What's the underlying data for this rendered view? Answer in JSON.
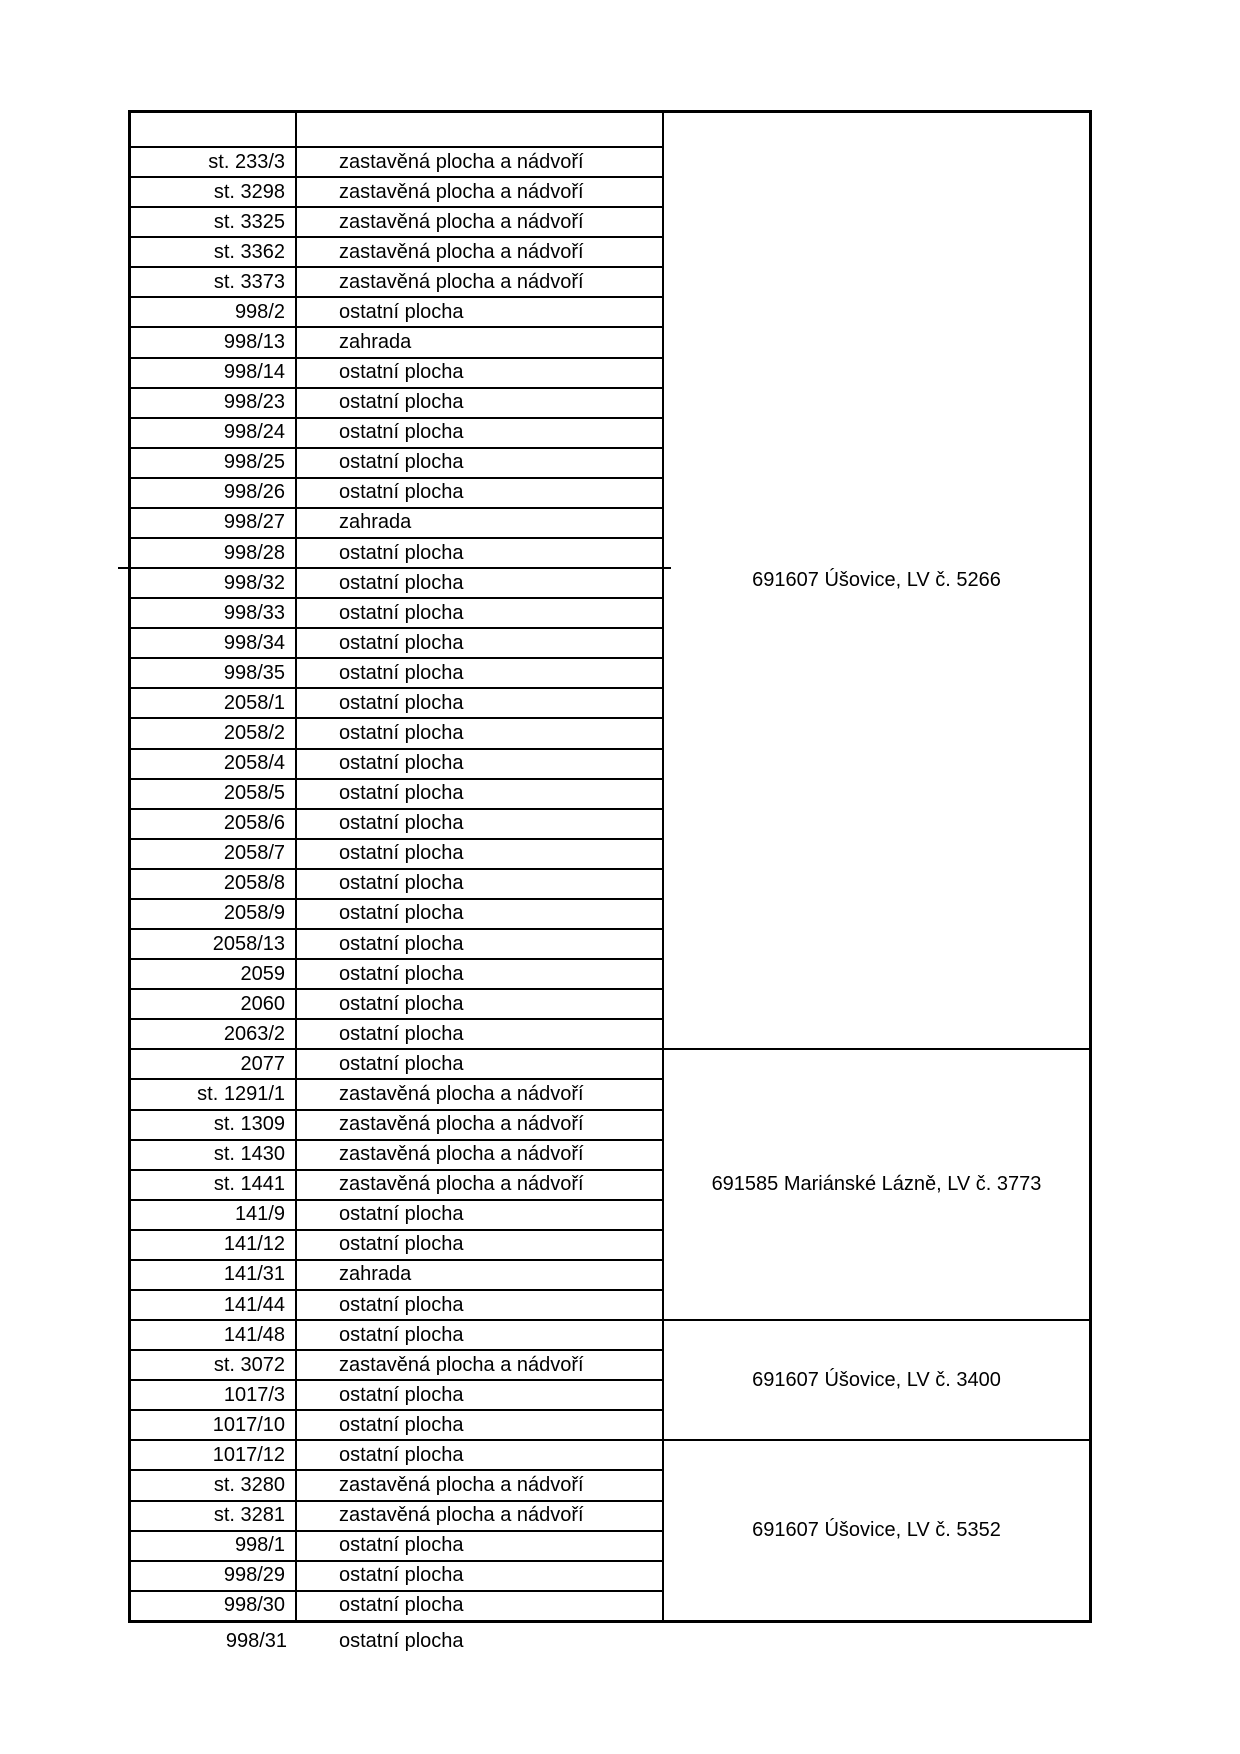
{
  "page": {
    "background": "#ffffff",
    "text_color": "#000000",
    "border_color": "#000000"
  },
  "table": {
    "columns": [
      "parcel_number",
      "land_type",
      "cadastral_territory_lv"
    ],
    "header_row_empty": true,
    "land_type_values": [
      "zastavěná plocha a nádvoří",
      "ostatní plocha",
      "zahrada"
    ],
    "rows": [
      {
        "parcel": "st. 233/3",
        "type": "zastavěná plocha a nádvoří"
      },
      {
        "parcel": "st. 3298",
        "type": "zastavěná plocha a nádvoří"
      },
      {
        "parcel": "st. 3325",
        "type": "zastavěná plocha a nádvoří"
      },
      {
        "parcel": "st. 3362",
        "type": "zastavěná plocha a nádvoří"
      },
      {
        "parcel": "st. 3373",
        "type": "zastavěná plocha a nádvoří"
      },
      {
        "parcel": "998/2",
        "type": "ostatní plocha"
      },
      {
        "parcel": "998/13",
        "type": "zahrada"
      },
      {
        "parcel": "998/14",
        "type": "ostatní plocha"
      },
      {
        "parcel": "998/23",
        "type": "ostatní plocha"
      },
      {
        "parcel": "998/24",
        "type": "ostatní plocha"
      },
      {
        "parcel": "998/25",
        "type": "ostatní plocha"
      },
      {
        "parcel": "998/26",
        "type": "ostatní plocha"
      },
      {
        "parcel": "998/27",
        "type": "zahrada"
      },
      {
        "parcel": "998/28",
        "type": "ostatní plocha"
      },
      {
        "parcel": "998/32",
        "type": "ostatní plocha"
      },
      {
        "parcel": "998/33",
        "type": "ostatní plocha"
      },
      {
        "parcel": "998/34",
        "type": "ostatní plocha"
      },
      {
        "parcel": "998/35",
        "type": "ostatní plocha"
      },
      {
        "parcel": "2058/1",
        "type": "ostatní plocha"
      },
      {
        "parcel": "2058/2",
        "type": "ostatní plocha"
      },
      {
        "parcel": "2058/4",
        "type": "ostatní plocha"
      },
      {
        "parcel": "2058/5",
        "type": "ostatní plocha"
      },
      {
        "parcel": "2058/6",
        "type": "ostatní plocha"
      },
      {
        "parcel": "2058/7",
        "type": "ostatní plocha"
      },
      {
        "parcel": "2058/8",
        "type": "ostatní plocha"
      },
      {
        "parcel": "2058/9",
        "type": "ostatní plocha"
      },
      {
        "parcel": "2058/13",
        "type": "ostatní plocha"
      },
      {
        "parcel": "2059",
        "type": "ostatní plocha"
      },
      {
        "parcel": "2060",
        "type": "ostatní plocha"
      },
      {
        "parcel": "2063/2",
        "type": "ostatní plocha"
      },
      {
        "parcel": "2077",
        "type": "ostatní plocha"
      },
      {
        "parcel": "st. 1291/1",
        "type": "zastavěná plocha a nádvoří"
      },
      {
        "parcel": "st. 1309",
        "type": "zastavěná plocha a nádvoří"
      },
      {
        "parcel": "st. 1430",
        "type": "zastavěná plocha a nádvoří"
      },
      {
        "parcel": "st. 1441",
        "type": "zastavěná plocha a nádvoří"
      },
      {
        "parcel": "141/9",
        "type": "ostatní plocha"
      },
      {
        "parcel": "141/12",
        "type": "ostatní plocha"
      },
      {
        "parcel": "141/31",
        "type": "zahrada"
      },
      {
        "parcel": "141/44",
        "type": "ostatní plocha"
      },
      {
        "parcel": "141/48",
        "type": "ostatní plocha"
      },
      {
        "parcel": "st. 3072",
        "type": "zastavěná plocha a nádvoří"
      },
      {
        "parcel": "1017/3",
        "type": "ostatní plocha"
      },
      {
        "parcel": "1017/10",
        "type": "ostatní plocha"
      },
      {
        "parcel": "1017/12",
        "type": "ostatní plocha"
      },
      {
        "parcel": "st. 3280",
        "type": "zastavěná plocha a nádvoří"
      },
      {
        "parcel": "st. 3281",
        "type": "zastavěná plocha a nádvoří"
      },
      {
        "parcel": "998/1",
        "type": "ostatní plocha"
      },
      {
        "parcel": "998/29",
        "type": "ostatní plocha"
      },
      {
        "parcel": "998/30",
        "type": "ostatní plocha"
      }
    ],
    "groups": [
      {
        "label": "691607 Úšovice, LV č. 5266",
        "data_row_span": 30,
        "includes_header": true
      },
      {
        "label": "691585 Mariánské Lázně, LV č. 3773",
        "data_row_span": 9
      },
      {
        "label": "691607 Úšovice, LV č. 3400",
        "data_row_span": 4
      },
      {
        "label": "691607 Úšovice, LV č. 5352",
        "data_row_span": 6
      }
    ],
    "seam_after_data_row": 14,
    "continuation_row": {
      "parcel": "998/31",
      "type": "ostatní plocha"
    }
  }
}
